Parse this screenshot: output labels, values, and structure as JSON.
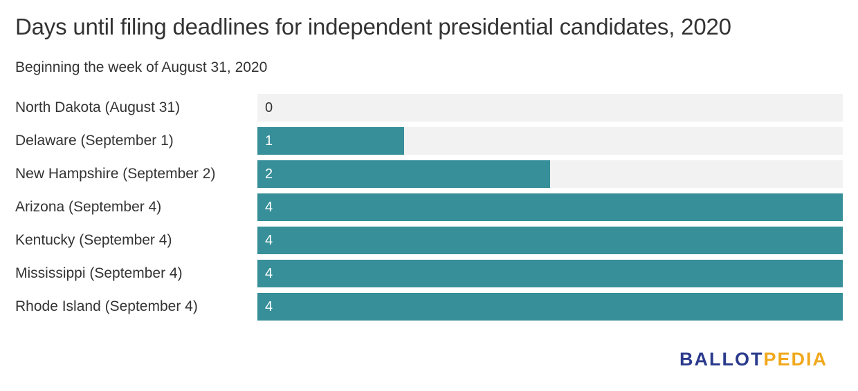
{
  "title": "Days until filing deadlines for independent presidential candidates, 2020",
  "subtitle": "Beginning the week of August 31, 2020",
  "colors": {
    "bar": "#368f99",
    "track": "#f2f2f2",
    "text": "#333333",
    "bar_text": "#ffffff",
    "logo_primary": "#2a3a8c",
    "logo_secondary": "#f0a81c"
  },
  "logo": {
    "part1": "BALLOT",
    "part2": "PEDIA"
  },
  "chart_data": {
    "type": "bar",
    "orientation": "horizontal",
    "title": "Days until filing deadlines for independent presidential candidates, 2020",
    "subtitle": "Beginning the week of August 31, 2020",
    "xlim": [
      0,
      4
    ],
    "grid": false,
    "categories": [
      "North Dakota (August 31)",
      "Delaware (September 1)",
      "New Hampshire (September 2)",
      "Arizona (September 4)",
      "Kentucky (September 4)",
      "Mississippi (September 4)",
      "Rhode Island (September 4)"
    ],
    "values": [
      0,
      1,
      2,
      4,
      4,
      4,
      4
    ],
    "value_labels": [
      "0",
      "1",
      "2",
      "4",
      "4",
      "4",
      "4"
    ]
  }
}
